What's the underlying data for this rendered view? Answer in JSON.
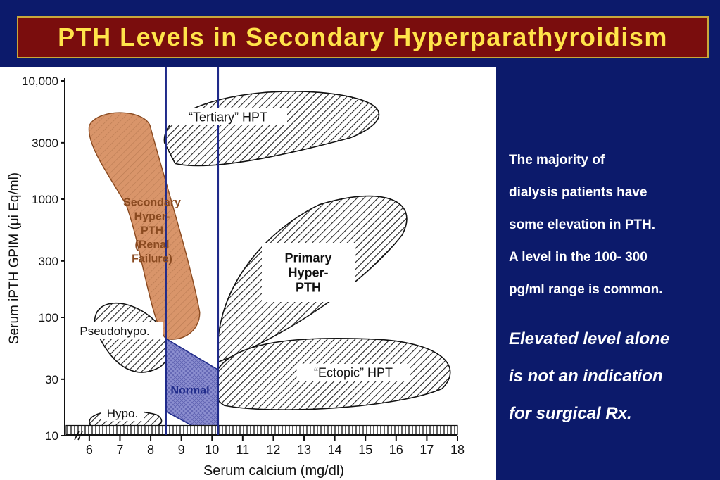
{
  "title": "PTH  Levels  in  Secondary  Hyperparathyroidism",
  "side_note_lines": [
    "The majority of",
    "dialysis patients have",
    "some elevation in PTH.",
    "A level in the 100- 300",
    "pg/ml range is common."
  ],
  "side_emphasis_lines": [
    "Elevated level alone",
    "is not an indication",
    "for surgical Rx."
  ],
  "colors": {
    "background": "#0c1a6b",
    "title_box": "#7a0d0d",
    "title_text": "#ffe44a",
    "secondary_fill": "#d9956a",
    "normal_fill": "#8c8fd0",
    "reference_lines": "#1f2a8a"
  },
  "chart_data": {
    "type": "region",
    "xlabel": "Serum calcium (mg/dl)",
    "ylabel": "Serum iPTH GPIM (μi Eq/ml)",
    "x_ticks": [
      "6",
      "7",
      "8",
      "9",
      "10",
      "11",
      "12",
      "13",
      "14",
      "15",
      "16",
      "17",
      "18"
    ],
    "y_ticks": [
      "10,000",
      "3000",
      "1000",
      "300",
      "100",
      "30",
      "10"
    ],
    "xlim": [
      5.2,
      18
    ],
    "ylim": [
      10,
      10000
    ],
    "y_scale": "log",
    "reference_lines_x": [
      8.5,
      10.2
    ],
    "regions": [
      {
        "label": "“Tertiary” HPT",
        "x_range": [
          8.4,
          15.6
        ],
        "y_range": [
          1900,
          9000
        ]
      },
      {
        "label": "Secondary Hyper-PTH (Renal Failure)",
        "x_range": [
          6.0,
          9.6
        ],
        "y_range": [
          60,
          5500
        ]
      },
      {
        "label": "Primary Hyper-PTH",
        "x_range": [
          10.0,
          16.5
        ],
        "y_range": [
          40,
          1000
        ]
      },
      {
        "label": "“Ectopic” HPT",
        "x_range": [
          10.2,
          18.0
        ],
        "y_range": [
          15,
          70
        ]
      },
      {
        "label": "Pseudohypo.",
        "x_range": [
          6.0,
          8.2
        ],
        "y_range": [
          35,
          130
        ]
      },
      {
        "label": "Normal",
        "x_range": [
          8.5,
          10.2
        ],
        "y_range": [
          10,
          70
        ]
      },
      {
        "label": "Hypo.",
        "x_range": [
          6.0,
          8.3
        ],
        "y_range": [
          10,
          16
        ]
      }
    ]
  }
}
